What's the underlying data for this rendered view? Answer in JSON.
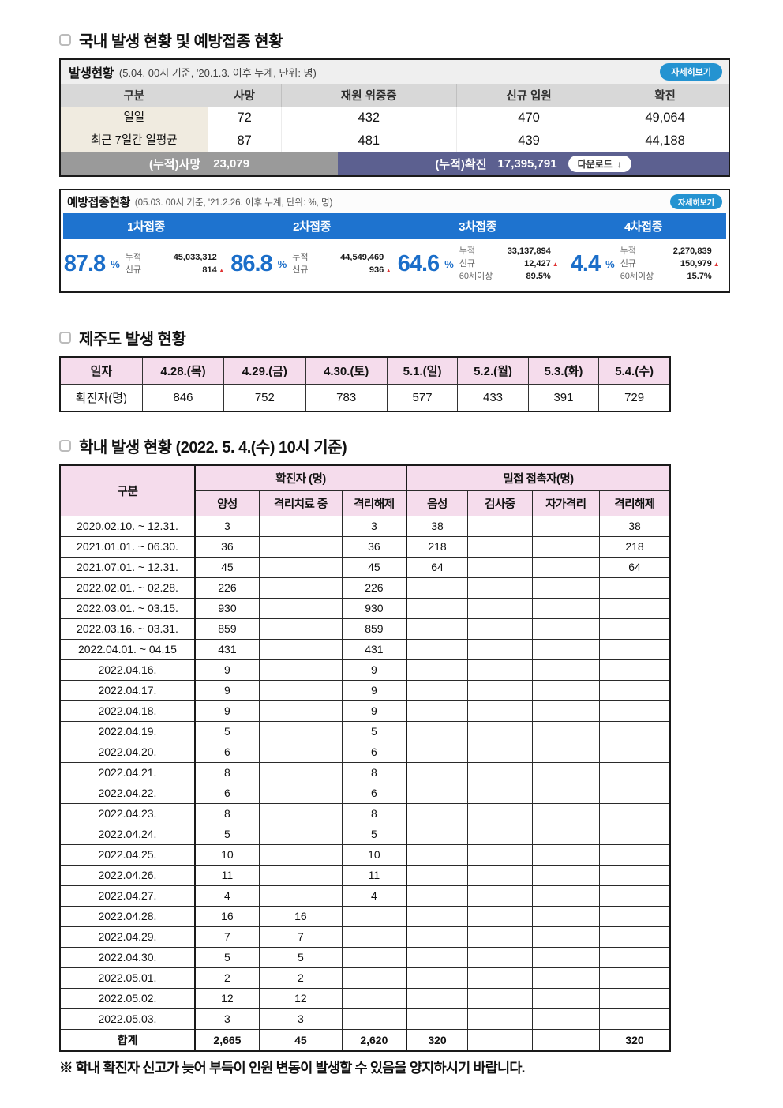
{
  "colors": {
    "accent_blue": "#1e73cf",
    "button_blue": "#2493d1",
    "pink_header": "#f5dcec",
    "beige_cell": "#f0ebe0",
    "gray_header": "#d8d8d8",
    "footer_gray": "#9a9a9a",
    "footer_slate": "#5c6090",
    "up_arrow_red": "#e03131"
  },
  "icons": {
    "checkbox": "checkbox-outline",
    "download": "↓",
    "up_arrow": "▲",
    "reference_mark": "※"
  },
  "page": {
    "section1_title": "국내 발생 현황 및 예방접종 현황",
    "section2_title": "제주도 발생 현황",
    "section3_title": "학내 발생 현황 (2022. 5. 4.(수) 10시 기준)",
    "footnote": "※ 학내 확진자 신고가 늦어 부득이 인원 변동이 발생할 수 있음을 양지하시기 바랍니다."
  },
  "occurrence": {
    "title": "발생현황",
    "subtitle": "(5.04. 00시 기준, '20.1.3. 이후 누계, 단위: 명)",
    "detail_button": "자세히보기",
    "headers": [
      "구분",
      "사망",
      "재원 위중증",
      "신규 입원",
      "확진"
    ],
    "rows": [
      {
        "label": "일일",
        "values": [
          "72",
          "432",
          "470",
          "49,064"
        ]
      },
      {
        "label": "최근 7일간 일평균",
        "values": [
          "87",
          "481",
          "439",
          "44,188"
        ]
      }
    ],
    "footer": {
      "deaths_label": "(누적)사망",
      "deaths_value": "23,079",
      "confirmed_label": "(누적)확진",
      "confirmed_value": "17,395,791",
      "download_button": "다운로드"
    }
  },
  "vaccination": {
    "title": "예방접종현황",
    "subtitle": "(05.03. 00시 기준, '21.2.26. 이후 누계, 단위: %, 명)",
    "detail_button": "자세히보기",
    "percent_unit": "%",
    "doses": [
      {
        "label": "1차접종",
        "percent": "87.8",
        "stats": [
          {
            "k": "누적",
            "v": "45,033,312",
            "up": false
          },
          {
            "k": "신규",
            "v": "814",
            "up": true
          }
        ]
      },
      {
        "label": "2차접종",
        "percent": "86.8",
        "stats": [
          {
            "k": "누적",
            "v": "44,549,469",
            "up": false
          },
          {
            "k": "신규",
            "v": "936",
            "up": true
          }
        ]
      },
      {
        "label": "3차접종",
        "percent": "64.6",
        "stats": [
          {
            "k": "누적",
            "v": "33,137,894",
            "up": false
          },
          {
            "k": "신규",
            "v": "12,427",
            "up": true
          },
          {
            "k": "60세이상",
            "v": "89.5%",
            "up": false
          }
        ]
      },
      {
        "label": "4차접종",
        "percent": "4.4",
        "stats": [
          {
            "k": "누적",
            "v": "2,270,839",
            "up": false
          },
          {
            "k": "신규",
            "v": "150,979",
            "up": true
          },
          {
            "k": "60세이상",
            "v": "15.7%",
            "up": false
          }
        ]
      }
    ]
  },
  "jeju": {
    "headers": [
      "일자",
      "4.28.(목)",
      "4.29.(금)",
      "4.30.(토)",
      "5.1.(일)",
      "5.2.(월)",
      "5.3.(화)",
      "5.4.(수)"
    ],
    "row_label": "확진자(명)",
    "values": [
      "846",
      "752",
      "783",
      "577",
      "433",
      "391",
      "729"
    ]
  },
  "school": {
    "col_group_label": "구분",
    "group_confirmed": "확진자 (명)",
    "group_contact": "밀접 접촉자(명)",
    "sub_confirmed": [
      "양성",
      "격리치료 중",
      "격리해제"
    ],
    "sub_contact": [
      "음성",
      "검사중",
      "자가격리",
      "격리해제"
    ],
    "rows": [
      [
        "2020.02.10. ~ 12.31.",
        "3",
        "",
        "3",
        "38",
        "",
        "",
        "38"
      ],
      [
        "2021.01.01. ~ 06.30.",
        "36",
        "",
        "36",
        "218",
        "",
        "",
        "218"
      ],
      [
        "2021.07.01. ~ 12.31.",
        "45",
        "",
        "45",
        "64",
        "",
        "",
        "64"
      ],
      [
        "2022.02.01. ~ 02.28.",
        "226",
        "",
        "226",
        "",
        "",
        "",
        ""
      ],
      [
        "2022.03.01. ~ 03.15.",
        "930",
        "",
        "930",
        "",
        "",
        "",
        ""
      ],
      [
        "2022.03.16. ~ 03.31.",
        "859",
        "",
        "859",
        "",
        "",
        "",
        ""
      ],
      [
        "2022.04.01. ~ 04.15",
        "431",
        "",
        "431",
        "",
        "",
        "",
        ""
      ],
      [
        "2022.04.16.",
        "9",
        "",
        "9",
        "",
        "",
        "",
        ""
      ],
      [
        "2022.04.17.",
        "9",
        "",
        "9",
        "",
        "",
        "",
        ""
      ],
      [
        "2022.04.18.",
        "9",
        "",
        "9",
        "",
        "",
        "",
        ""
      ],
      [
        "2022.04.19.",
        "5",
        "",
        "5",
        "",
        "",
        "",
        ""
      ],
      [
        "2022.04.20.",
        "6",
        "",
        "6",
        "",
        "",
        "",
        ""
      ],
      [
        "2022.04.21.",
        "8",
        "",
        "8",
        "",
        "",
        "",
        ""
      ],
      [
        "2022.04.22.",
        "6",
        "",
        "6",
        "",
        "",
        "",
        ""
      ],
      [
        "2022.04.23.",
        "8",
        "",
        "8",
        "",
        "",
        "",
        ""
      ],
      [
        "2022.04.24.",
        "5",
        "",
        "5",
        "",
        "",
        "",
        ""
      ],
      [
        "2022.04.25.",
        "10",
        "",
        "10",
        "",
        "",
        "",
        ""
      ],
      [
        "2022.04.26.",
        "11",
        "",
        "11",
        "",
        "",
        "",
        ""
      ],
      [
        "2022.04.27.",
        "4",
        "",
        "4",
        "",
        "",
        "",
        ""
      ],
      [
        "2022.04.28.",
        "16",
        "16",
        "",
        "",
        "",
        "",
        ""
      ],
      [
        "2022.04.29.",
        "7",
        "7",
        "",
        "",
        "",
        "",
        ""
      ],
      [
        "2022.04.30.",
        "5",
        "5",
        "",
        "",
        "",
        "",
        ""
      ],
      [
        "2022.05.01.",
        "2",
        "2",
        "",
        "",
        "",
        "",
        ""
      ],
      [
        "2022.05.02.",
        "12",
        "12",
        "",
        "",
        "",
        "",
        ""
      ],
      [
        "2022.05.03.",
        "3",
        "3",
        "",
        "",
        "",
        "",
        ""
      ],
      [
        "합계",
        "2,665",
        "45",
        "2,620",
        "320",
        "",
        "",
        "320"
      ]
    ]
  }
}
